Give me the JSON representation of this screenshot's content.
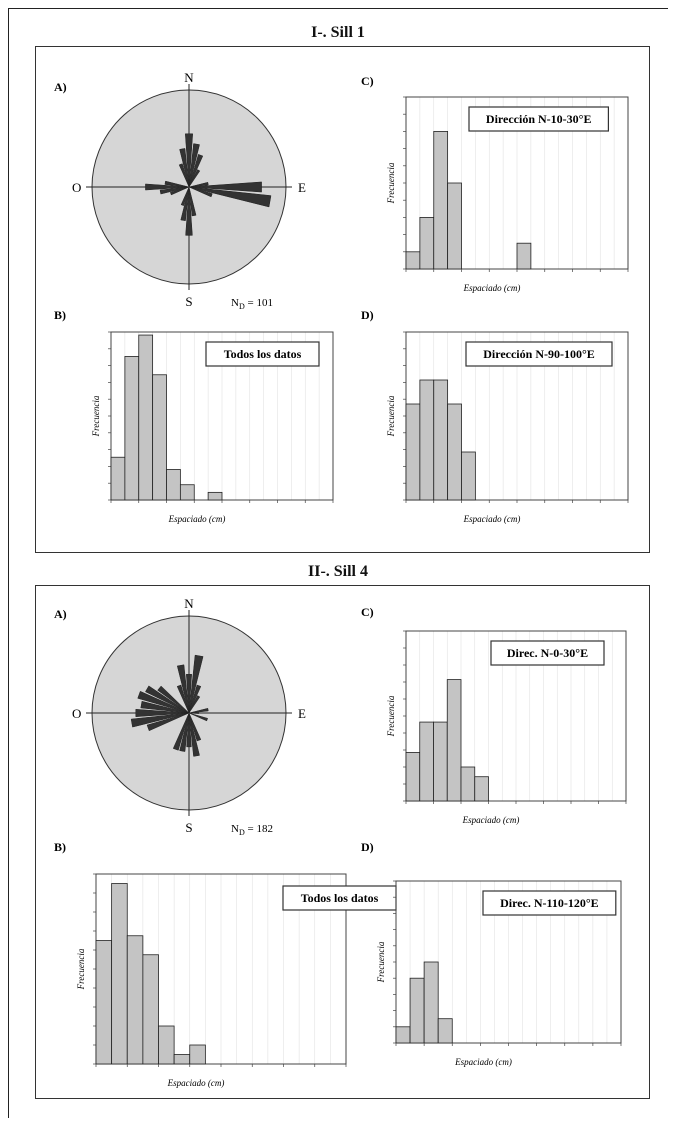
{
  "sections": [
    {
      "title": "I-. Sill 1",
      "rose": {
        "label": "A)",
        "n": "N",
        "s": "S",
        "e": "E",
        "w": "O",
        "count": "N",
        "count_sub": "D",
        "count_val": "= 101",
        "petals": [
          [
            0,
            0.55
          ],
          [
            10,
            0.45
          ],
          [
            20,
            0.35
          ],
          [
            30,
            0.2
          ],
          [
            80,
            0.2
          ],
          [
            90,
            0.75
          ],
          [
            100,
            0.85
          ],
          [
            110,
            0.25
          ],
          [
            170,
            0.3
          ],
          [
            180,
            0.5
          ],
          [
            190,
            0.35
          ],
          [
            200,
            0.2
          ],
          [
            250,
            0.2
          ],
          [
            260,
            0.3
          ],
          [
            270,
            0.45
          ],
          [
            280,
            0.25
          ],
          [
            340,
            0.25
          ],
          [
            350,
            0.4
          ]
        ]
      },
      "hist": [
        {
          "label": "B)",
          "box": "Todos los datos",
          "ylabel": "Frecuencia",
          "xlabel": "Espaciado (cm)",
          "ymax": 55,
          "values": [
            14,
            47,
            54,
            41,
            10,
            5,
            0,
            2.5,
            0,
            0,
            0,
            0,
            0,
            0,
            0,
            0
          ]
        },
        {
          "label": "C)",
          "box": "Dirección N-10-30°E",
          "ylabel": "Frecuencia",
          "xlabel": "Espaciado (cm)",
          "ymax": 10,
          "values": [
            1,
            3,
            8,
            5,
            0,
            0,
            0,
            0,
            1.5,
            0,
            0,
            0,
            0,
            0,
            0,
            0
          ]
        },
        {
          "label": "D)",
          "box": "Dirección N-90-100°E",
          "ylabel": "Frecuencia",
          "xlabel": "Espaciado (cm)",
          "ymax": 7,
          "values": [
            4,
            5,
            5,
            4,
            2,
            0,
            0,
            0,
            0,
            0,
            0,
            0,
            0,
            0,
            0,
            0
          ]
        }
      ]
    },
    {
      "title": "II-. Sill 4",
      "rose": {
        "label": "A)",
        "n": "N",
        "s": "S",
        "e": "E",
        "w": "O",
        "count": "N",
        "count_sub": "D",
        "count_val": "= 182",
        "petals": [
          [
            0,
            0.4
          ],
          [
            10,
            0.6
          ],
          [
            20,
            0.3
          ],
          [
            30,
            0.2
          ],
          [
            80,
            0.2
          ],
          [
            90,
            0.1
          ],
          [
            110,
            0.2
          ],
          [
            160,
            0.3
          ],
          [
            170,
            0.45
          ],
          [
            180,
            0.35
          ],
          [
            190,
            0.4
          ],
          [
            200,
            0.4
          ],
          [
            250,
            0.45
          ],
          [
            260,
            0.6
          ],
          [
            270,
            0.55
          ],
          [
            280,
            0.5
          ],
          [
            290,
            0.55
          ],
          [
            300,
            0.5
          ],
          [
            310,
            0.4
          ],
          [
            340,
            0.3
          ],
          [
            350,
            0.5
          ]
        ]
      },
      "hist": [
        {
          "label": "B)",
          "box": "Todos los datos",
          "ylabel": "Frecuencia",
          "xlabel": "Espaciado (cm)",
          "ymax": 40,
          "values": [
            26,
            38,
            27,
            23,
            8,
            2,
            4,
            0,
            0,
            0,
            0,
            0,
            0,
            0,
            0,
            0
          ]
        },
        {
          "label": "C)",
          "box": "Direc. N-0-30°E",
          "ylabel": "Frecuencia",
          "xlabel": "Espaciado (cm)",
          "ymax": 14,
          "values": [
            4,
            6.5,
            6.5,
            10,
            2.8,
            2,
            0,
            0,
            0,
            0,
            0,
            0,
            0,
            0,
            0,
            0
          ]
        },
        {
          "label": "D)",
          "box": "Direc. N-110-120°E",
          "ylabel": "Frecuencia",
          "xlabel": "Espaciado (cm)",
          "ymax": 10,
          "values": [
            1,
            4,
            5,
            1.5,
            0,
            0,
            0,
            0,
            0,
            0,
            0,
            0,
            0,
            0,
            0,
            0
          ]
        }
      ]
    }
  ],
  "chart_data": [
    {
      "type": "bar",
      "title": "",
      "xlabel": "Espaciado (cm)",
      "ylabel": "Frecuencia",
      "series": [
        {
          "name": "Todos los datos",
          "values": [
            14,
            47,
            54,
            41,
            10,
            5,
            0,
            2.5
          ]
        }
      ]
    },
    {
      "type": "bar",
      "title": "",
      "xlabel": "Espaciado (cm)",
      "ylabel": "Frecuencia",
      "series": [
        {
          "name": "Dirección N-10-30°E",
          "values": [
            1,
            3,
            8,
            5,
            0,
            0,
            0,
            0,
            1.5
          ]
        }
      ]
    },
    {
      "type": "bar",
      "title": "",
      "xlabel": "Espaciado (cm)",
      "ylabel": "Frecuencia",
      "series": [
        {
          "name": "Dirección N-90-100°E",
          "values": [
            4,
            5,
            5,
            4,
            2
          ]
        }
      ]
    },
    {
      "type": "bar",
      "title": "",
      "xlabel": "Espaciado (cm)",
      "ylabel": "Frecuencia",
      "series": [
        {
          "name": "Todos los datos",
          "values": [
            26,
            38,
            27,
            23,
            8,
            2,
            4
          ]
        }
      ]
    },
    {
      "type": "bar",
      "title": "",
      "xlabel": "Espaciado (cm)",
      "ylabel": "Frecuencia",
      "series": [
        {
          "name": "Direc. N-0-30°E",
          "values": [
            4,
            6.5,
            6.5,
            10,
            2.8,
            2
          ]
        }
      ]
    },
    {
      "type": "bar",
      "title": "",
      "xlabel": "Espaciado (cm)",
      "ylabel": "Frecuencia",
      "series": [
        {
          "name": "Direc. N-110-120°E",
          "values": [
            1,
            4,
            5,
            1.5
          ]
        }
      ]
    }
  ]
}
